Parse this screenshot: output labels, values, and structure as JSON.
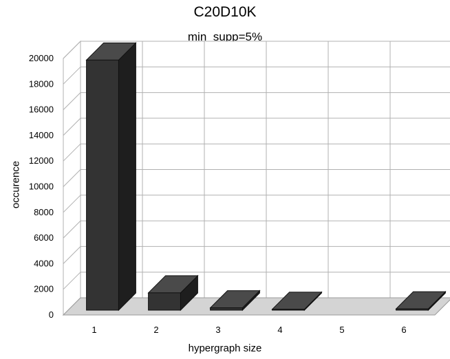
{
  "chart_data": {
    "type": "bar",
    "title": "C20D10K",
    "subtitle": "min_supp=5%",
    "xlabel": "hypergraph size",
    "ylabel": "occurence",
    "categories": [
      "1",
      "2",
      "3",
      "4",
      "5",
      "6"
    ],
    "values": [
      19500,
      1350,
      180,
      70,
      0,
      100
    ],
    "ylim": [
      0,
      20000
    ],
    "yticks": [
      0,
      2000,
      4000,
      6000,
      8000,
      10000,
      12000,
      14000,
      16000,
      18000,
      20000
    ],
    "grid": true,
    "legend": "none",
    "style": "3d",
    "colors": {
      "bar_front": "#333333",
      "bar_side": "#1e1e1e",
      "bar_top": "#4a4a4a",
      "floor": "#d4d4d4",
      "grid": "#b0b0b0"
    }
  }
}
